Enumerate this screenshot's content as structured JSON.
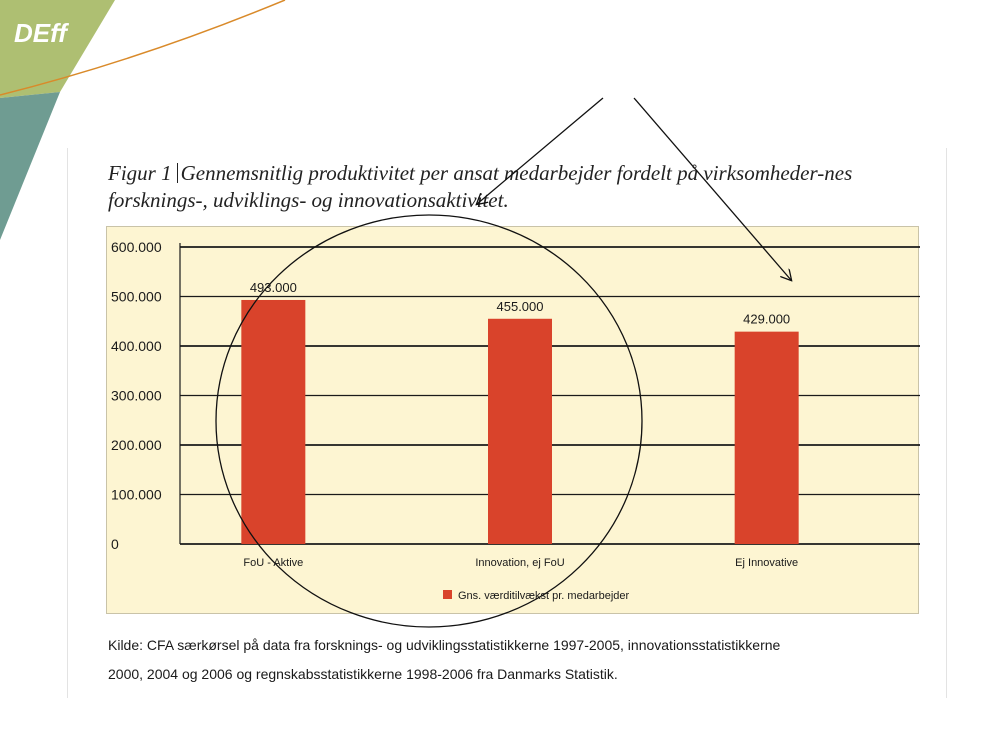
{
  "logo": {
    "text": "DEff"
  },
  "figure": {
    "prefix": "Figur 1",
    "title": "Gennemsnitlig produktivitet per ansat medarbejder fordelt på virksomheder-nes forsknings-, udviklings- og innovationsaktivitet."
  },
  "source": {
    "line1": "Kilde: CFA særkørsel på data fra forsknings- og udviklingsstatistikkerne 1997-2005, innovationsstatistikkerne",
    "line2": "2000, 2004 og 2006 og regnskabsstatistikkerne 1998-2006 fra Danmarks Statistik."
  },
  "colors": {
    "bar": "#d9432b",
    "panel_bg": "#fdf5d2",
    "logo_green": "#aebf72",
    "logo_teal": "#6f9c92"
  },
  "annotations": [
    "circle",
    "arrow",
    "arrow"
  ],
  "chart_data": {
    "type": "bar",
    "categories": [
      "FoU - Aktive",
      "Innovation, ej FoU",
      "Ej Innovative"
    ],
    "series": [
      {
        "name": "Gns. værditilvækst pr. medarbejder",
        "values": [
          493000,
          455000,
          429000
        ]
      }
    ],
    "data_labels": [
      "493.000",
      "455.000",
      "429.000"
    ],
    "y_ticks": [
      {
        "value": 0,
        "label": "0"
      },
      {
        "value": 100000,
        "label": "100.000"
      },
      {
        "value": 200000,
        "label": "200.000"
      },
      {
        "value": 300000,
        "label": "300.000"
      },
      {
        "value": 400000,
        "label": "400.000"
      },
      {
        "value": 500000,
        "label": "500.000"
      },
      {
        "value": 600000,
        "label": "600.000"
      }
    ],
    "ylim": [
      0,
      600000
    ],
    "grid": true,
    "legend": "bottom"
  }
}
